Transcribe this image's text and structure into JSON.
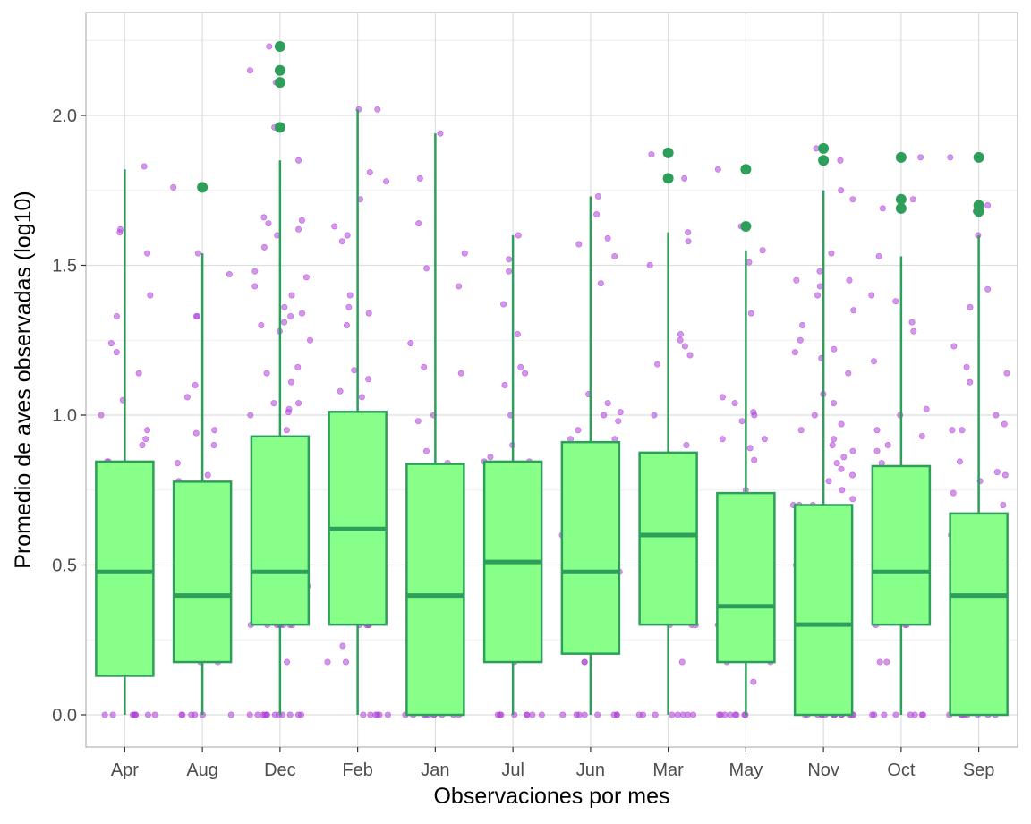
{
  "chart_data": {
    "type": "boxplot",
    "xlabel": "Observaciones por mes",
    "ylabel": "Promedio de aves observadas (log10)",
    "ylim": [
      -0.1,
      2.35
    ],
    "yticks": [
      0.0,
      0.5,
      1.0,
      1.5,
      2.0
    ],
    "ytick_labels": [
      "0.0",
      "0.5",
      "1.0",
      "1.5",
      "2.0"
    ],
    "grid": true,
    "colors": {
      "box_fill": "#88FF88",
      "box_line": "#2E9E5B",
      "points": "#B040D8",
      "grid": "#DEDEDE",
      "panel_border": "#B3B3B3"
    },
    "categories": [
      "Apr",
      "Aug",
      "Dec",
      "Feb",
      "Jan",
      "Jul",
      "Jun",
      "Mar",
      "May",
      "Nov",
      "Oct",
      "Sep"
    ],
    "boxes": [
      {
        "month": "Apr",
        "min": 0.0,
        "q1": 0.13,
        "median": 0.477,
        "q3": 0.845,
        "max": 1.82,
        "outliers": []
      },
      {
        "month": "Aug",
        "min": 0.0,
        "q1": 0.176,
        "median": 0.398,
        "q3": 0.778,
        "max": 1.54,
        "outliers": [
          1.76
        ]
      },
      {
        "month": "Dec",
        "min": 0.0,
        "q1": 0.301,
        "median": 0.477,
        "q3": 0.929,
        "max": 1.85,
        "outliers": [
          1.96,
          2.11,
          2.15,
          2.23
        ]
      },
      {
        "month": "Feb",
        "min": 0.0,
        "q1": 0.301,
        "median": 0.62,
        "q3": 1.011,
        "max": 2.02,
        "outliers": []
      },
      {
        "month": "Jan",
        "min": 0.0,
        "q1": 0.0,
        "median": 0.398,
        "q3": 0.837,
        "max": 1.94,
        "outliers": []
      },
      {
        "month": "Jul",
        "min": 0.0,
        "q1": 0.176,
        "median": 0.51,
        "q3": 0.845,
        "max": 1.6,
        "outliers": []
      },
      {
        "month": "Jun",
        "min": 0.0,
        "q1": 0.204,
        "median": 0.477,
        "q3": 0.91,
        "max": 1.73,
        "outliers": []
      },
      {
        "month": "Mar",
        "min": 0.0,
        "q1": 0.301,
        "median": 0.6,
        "q3": 0.875,
        "max": 1.61,
        "outliers": [
          1.79,
          1.875
        ]
      },
      {
        "month": "May",
        "min": 0.0,
        "q1": 0.176,
        "median": 0.362,
        "q3": 0.74,
        "max": 1.55,
        "outliers": [
          1.63,
          1.82
        ]
      },
      {
        "month": "Nov",
        "min": 0.0,
        "q1": 0.0,
        "median": 0.301,
        "q3": 0.7,
        "max": 1.75,
        "outliers": [
          1.85,
          1.89
        ]
      },
      {
        "month": "Oct",
        "min": 0.0,
        "q1": 0.301,
        "median": 0.477,
        "q3": 0.83,
        "max": 1.53,
        "outliers": [
          1.69,
          1.72,
          1.86
        ]
      },
      {
        "month": "Sep",
        "min": 0.0,
        "q1": 0.0,
        "median": 0.398,
        "q3": 0.672,
        "max": 1.6,
        "outliers": [
          1.68,
          1.7,
          1.86
        ]
      }
    ],
    "jitter_points": {
      "Apr": [
        0,
        0,
        0,
        0,
        0,
        0,
        0,
        0,
        0.3,
        0.3,
        0.477,
        0.6,
        0.7,
        0.74,
        0.8,
        0.845,
        0.845,
        0.9,
        0.95,
        0.92,
        1.0,
        1.05,
        1.14,
        1.21,
        1.24,
        1.33,
        1.4,
        1.54,
        1.61,
        1.62,
        1.83
      ],
      "Aug": [
        0,
        0,
        0,
        0,
        0,
        0,
        0.176,
        0.176,
        0.3,
        0.3,
        0.3,
        0.398,
        0.477,
        0.6,
        0.7,
        0.75,
        0.78,
        0.8,
        0.84,
        0.9,
        0.94,
        0.95,
        1.06,
        1.1,
        1.33,
        1.33,
        1.47,
        1.54,
        1.76
      ],
      "Dec": [
        0,
        0,
        0,
        0,
        0,
        0,
        0,
        0,
        0,
        0,
        0,
        0,
        0.176,
        0.3,
        0.3,
        0.3,
        0.3,
        0.3,
        0.3,
        0.3,
        0.3,
        0.43,
        0.6,
        0.7,
        0.8,
        0.95,
        1.0,
        1.01,
        1.02,
        1.04,
        1.04,
        1.11,
        1.14,
        1.16,
        1.25,
        1.28,
        1.3,
        1.31,
        1.33,
        1.34,
        1.36,
        1.4,
        1.43,
        1.46,
        1.48,
        1.56,
        1.6,
        1.62,
        1.64,
        1.65,
        1.66,
        1.85,
        1.96,
        2.11,
        2.15,
        2.23
      ],
      "Feb": [
        0,
        0,
        0,
        0,
        0,
        0,
        0.176,
        0.176,
        0.23,
        0.3,
        0.3,
        0.3,
        0.3,
        0.6,
        0.7,
        0.84,
        0.85,
        1.0,
        1.06,
        1.08,
        1.12,
        1.15,
        1.3,
        1.34,
        1.36,
        1.4,
        1.58,
        1.6,
        1.63,
        1.72,
        1.78,
        1.81,
        2.02,
        2.02
      ],
      "Jan": [
        0,
        0,
        0,
        0,
        0,
        0,
        0,
        0,
        0,
        0,
        0.176,
        0.3,
        0.477,
        0.6,
        0.7,
        0.75,
        0.84,
        0.88,
        0.98,
        1.0,
        1.14,
        1.16,
        1.24,
        1.43,
        1.49,
        1.54,
        1.64,
        1.79,
        1.94
      ],
      "Jul": [
        0,
        0,
        0,
        0,
        0,
        0,
        0,
        0,
        0.176,
        0.3,
        0.477,
        0.6,
        0.7,
        0.845,
        0.845,
        0.86,
        0.9,
        1.0,
        1.1,
        1.14,
        1.16,
        1.27,
        1.37,
        1.48,
        1.52,
        1.6
      ],
      "Jun": [
        0,
        0,
        0,
        0,
        0,
        0,
        0,
        0,
        0.176,
        0.176,
        0.3,
        0.477,
        0.6,
        0.75,
        0.85,
        0.92,
        0.92,
        0.95,
        0.98,
        1.0,
        1.01,
        1.04,
        1.07,
        1.44,
        1.53,
        1.57,
        1.59,
        1.67,
        1.73
      ],
      "Mar": [
        0,
        0,
        0,
        0,
        0,
        0,
        0,
        0,
        0.176,
        0.3,
        0.3,
        0.3,
        0.477,
        0.6,
        0.7,
        0.75,
        0.9,
        1.0,
        1.17,
        1.2,
        1.23,
        1.25,
        1.27,
        1.5,
        1.58,
        1.61,
        1.79,
        1.87
      ],
      "May": [
        0,
        0,
        0,
        0,
        0,
        0,
        0,
        0,
        0.11,
        0.176,
        0.176,
        0.3,
        0.477,
        0.7,
        0.75,
        0.85,
        0.89,
        0.92,
        0.92,
        0.98,
        1.0,
        1.01,
        1.04,
        1.06,
        1.34,
        1.51,
        1.55,
        1.63,
        1.82
      ],
      "Nov": [
        0,
        0,
        0,
        0,
        0,
        0,
        0,
        0,
        0,
        0,
        0,
        0,
        0,
        0,
        0.12,
        0.176,
        0.3,
        0.35,
        0.477,
        0.5,
        0.55,
        0.6,
        0.65,
        0.7,
        0.7,
        0.7,
        0.72,
        0.75,
        0.78,
        0.8,
        0.82,
        0.84,
        0.86,
        0.88,
        0.9,
        0.92,
        0.95,
        0.97,
        1.0,
        1.04,
        1.07,
        1.14,
        1.19,
        1.21,
        1.22,
        1.25,
        1.3,
        1.35,
        1.4,
        1.43,
        1.45,
        1.45,
        1.48,
        1.54,
        1.72,
        1.75,
        1.85,
        1.89
      ],
      "Oct": [
        0,
        0,
        0,
        0,
        0,
        0,
        0,
        0,
        0.176,
        0.176,
        0.3,
        0.3,
        0.3,
        0.477,
        0.6,
        0.7,
        0.75,
        0.8,
        0.84,
        0.88,
        0.9,
        0.93,
        0.95,
        1.0,
        1.02,
        1.18,
        1.28,
        1.31,
        1.38,
        1.4,
        1.53,
        1.69,
        1.72,
        1.86
      ],
      "Sep": [
        0,
        0,
        0,
        0,
        0,
        0,
        0,
        0,
        0.176,
        0.3,
        0.3,
        0.4,
        0.6,
        0.7,
        0.74,
        0.78,
        0.8,
        0.81,
        0.845,
        0.95,
        0.95,
        0.97,
        1.0,
        1.11,
        1.14,
        1.16,
        1.23,
        1.36,
        1.42,
        1.6,
        1.68,
        1.69,
        1.7,
        1.86,
        1.86
      ]
    }
  }
}
